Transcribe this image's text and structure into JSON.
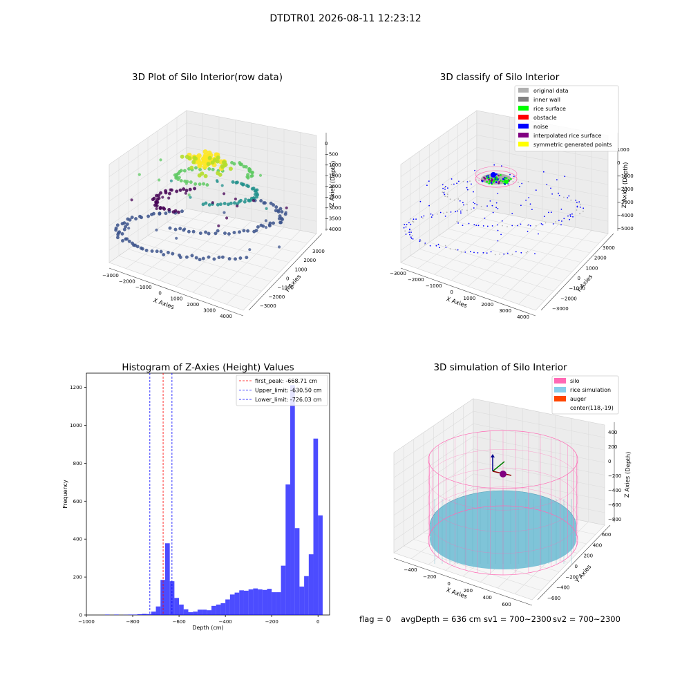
{
  "figure": {
    "suptitle": "DTDTR01 2026-08-11 12:23:12",
    "status_line": {
      "flag": "flag = 0",
      "avg_depth": "avgDepth = 636 cm",
      "sv1": "sv1 = 700~2300",
      "sv2": "sv2 = 700~2300"
    }
  },
  "chart_data": [
    {
      "type": "scatter",
      "projection": "3d",
      "title": "3D Plot of Silo Interior(row data)",
      "xlabel": "X Axies",
      "ylabel": "Y Axies",
      "zlabel": "Z Axies (Depth)",
      "xticks": [
        "−3000",
        "−2000",
        "−1000",
        "0",
        "1000",
        "2000",
        "3000",
        "4000"
      ],
      "yticks": [
        "−3000",
        "−2000",
        "−1000",
        "0",
        "1000",
        "2000",
        "3000"
      ],
      "zticks": [
        "0",
        "−500",
        "−1000",
        "−1500",
        "−2000",
        "−2500",
        "−3000",
        "−3500",
        "−4000"
      ],
      "xlim": [
        -3300,
        4300
      ],
      "ylim": [
        -3300,
        3300
      ],
      "zlim": [
        -4200,
        200
      ],
      "colormap": [
        "#440154",
        "#3b528b",
        "#21918c",
        "#5ec962",
        "#fde725"
      ],
      "series": [
        {
          "kind": "spiral_ring",
          "z": -4000,
          "radius": 3400,
          "count": 60
        },
        {
          "kind": "spiral_ring",
          "z": -3000,
          "radius": 2800,
          "count": 45
        },
        {
          "kind": "spiral_ring",
          "z": -2000,
          "radius": 2100,
          "count": 40
        },
        {
          "kind": "spiral_ring",
          "z": -1200,
          "radius": 1200,
          "count": 30
        },
        {
          "kind": "core",
          "z": -700,
          "radius": 300,
          "count": 40
        }
      ]
    },
    {
      "type": "scatter",
      "projection": "3d",
      "title": "3D classify of Silo Interior",
      "xlabel": "X Axies",
      "ylabel": "Y Axies",
      "zlabel": "Z Axies (Depth)",
      "xticks": [
        "−3000",
        "−2000",
        "−1000",
        "0",
        "1000",
        "2000",
        "3000",
        "4000"
      ],
      "yticks": [
        "−3000",
        "−2000",
        "−1000",
        "0",
        "1000",
        "2000",
        "3000"
      ],
      "zticks": [
        "1000",
        "0",
        "−1000",
        "−2000",
        "−3000",
        "−4000",
        "−5000"
      ],
      "legend": {
        "position": "upper right",
        "entries": [
          {
            "label": "original data",
            "color": "#b0b0b0"
          },
          {
            "label": "inner wall",
            "color": "#808080"
          },
          {
            "label": "rice surface",
            "color": "#00ff00"
          },
          {
            "label": "obstacle",
            "color": "#ff0000"
          },
          {
            "label": "noise",
            "color": "#0000ff"
          },
          {
            "label": "interpolated rice surface",
            "color": "#800080"
          },
          {
            "label": "symmetric generated points",
            "color": "#ffff00"
          }
        ]
      }
    },
    {
      "type": "bar",
      "title": "Histogram of Z-Axies (Height) Values",
      "xlabel": "Depth (cm)",
      "ylabel": "Frequency",
      "xlim": [
        -1000,
        50
      ],
      "ylim": [
        0,
        1275
      ],
      "xticks": [
        -1000,
        -800,
        -600,
        -400,
        -200,
        0
      ],
      "xtick_labels": [
        "−1000",
        "−800",
        "−600",
        "−400",
        "−200",
        "0"
      ],
      "yticks": [
        0,
        200,
        400,
        600,
        800,
        1000,
        1200
      ],
      "bar_color": "#0000ff",
      "bin_width": 20,
      "bins": [
        {
          "x0": -920,
          "y": 2
        },
        {
          "x0": -880,
          "y": 2
        },
        {
          "x0": -840,
          "y": 1
        },
        {
          "x0": -820,
          "y": 2
        },
        {
          "x0": -800,
          "y": 2
        },
        {
          "x0": -780,
          "y": 4
        },
        {
          "x0": -760,
          "y": 6
        },
        {
          "x0": -740,
          "y": 5
        },
        {
          "x0": -720,
          "y": 18
        },
        {
          "x0": -700,
          "y": 45
        },
        {
          "x0": -680,
          "y": 185
        },
        {
          "x0": -660,
          "y": 378
        },
        {
          "x0": -640,
          "y": 178
        },
        {
          "x0": -620,
          "y": 90
        },
        {
          "x0": -600,
          "y": 55
        },
        {
          "x0": -580,
          "y": 30
        },
        {
          "x0": -560,
          "y": 15
        },
        {
          "x0": -540,
          "y": 18
        },
        {
          "x0": -520,
          "y": 28
        },
        {
          "x0": -500,
          "y": 28
        },
        {
          "x0": -480,
          "y": 25
        },
        {
          "x0": -460,
          "y": 48
        },
        {
          "x0": -440,
          "y": 55
        },
        {
          "x0": -420,
          "y": 62
        },
        {
          "x0": -400,
          "y": 82
        },
        {
          "x0": -380,
          "y": 108
        },
        {
          "x0": -360,
          "y": 118
        },
        {
          "x0": -340,
          "y": 130
        },
        {
          "x0": -320,
          "y": 128
        },
        {
          "x0": -300,
          "y": 135
        },
        {
          "x0": -280,
          "y": 140
        },
        {
          "x0": -260,
          "y": 135
        },
        {
          "x0": -240,
          "y": 132
        },
        {
          "x0": -220,
          "y": 138
        },
        {
          "x0": -200,
          "y": 120
        },
        {
          "x0": -180,
          "y": 120
        },
        {
          "x0": -160,
          "y": 260
        },
        {
          "x0": -140,
          "y": 688
        },
        {
          "x0": -120,
          "y": 1212
        },
        {
          "x0": -100,
          "y": 458
        },
        {
          "x0": -80,
          "y": 150
        },
        {
          "x0": -60,
          "y": 205
        },
        {
          "x0": -40,
          "y": 320
        },
        {
          "x0": -20,
          "y": 930
        },
        {
          "x0": 0,
          "y": 525
        }
      ],
      "vlines": [
        {
          "label": "first_peak: -668.71 cm",
          "x": -668.71,
          "color": "#ff0000"
        },
        {
          "label": "Upper_limit: -630.50 cm",
          "x": -630.5,
          "color": "#0000ff"
        },
        {
          "label": "Lower_limit: -726.03 cm",
          "x": -726.03,
          "color": "#0000ff"
        }
      ],
      "legend": {
        "position": "upper right"
      }
    },
    {
      "type": "scatter",
      "projection": "3d",
      "title": "3D simulation of Silo Interior",
      "xlabel": "X Axies",
      "ylabel": "Y Axies",
      "zlabel": "Z Axies (Depth)",
      "xticks": [
        "−400",
        "−200",
        "0",
        "200",
        "400",
        "600"
      ],
      "yticks": [
        "−600",
        "−400",
        "−200",
        "0",
        "200",
        "400",
        "600"
      ],
      "zticks": [
        "400",
        "200",
        "0",
        "−200",
        "−400",
        "−600",
        "−800"
      ],
      "legend": {
        "position": "upper right",
        "entries": [
          {
            "label": "silo",
            "color": "#ff69b4"
          },
          {
            "label": "rice simulation",
            "color": "#87ceeb"
          },
          {
            "label": "auger",
            "color": "#ff4500"
          },
          {
            "label": "center(118,-19)",
            "color": ""
          }
        ]
      },
      "silo_color": "#ff69b4",
      "rice_color": "#7fc4d8",
      "auger_color": "#800080"
    }
  ]
}
